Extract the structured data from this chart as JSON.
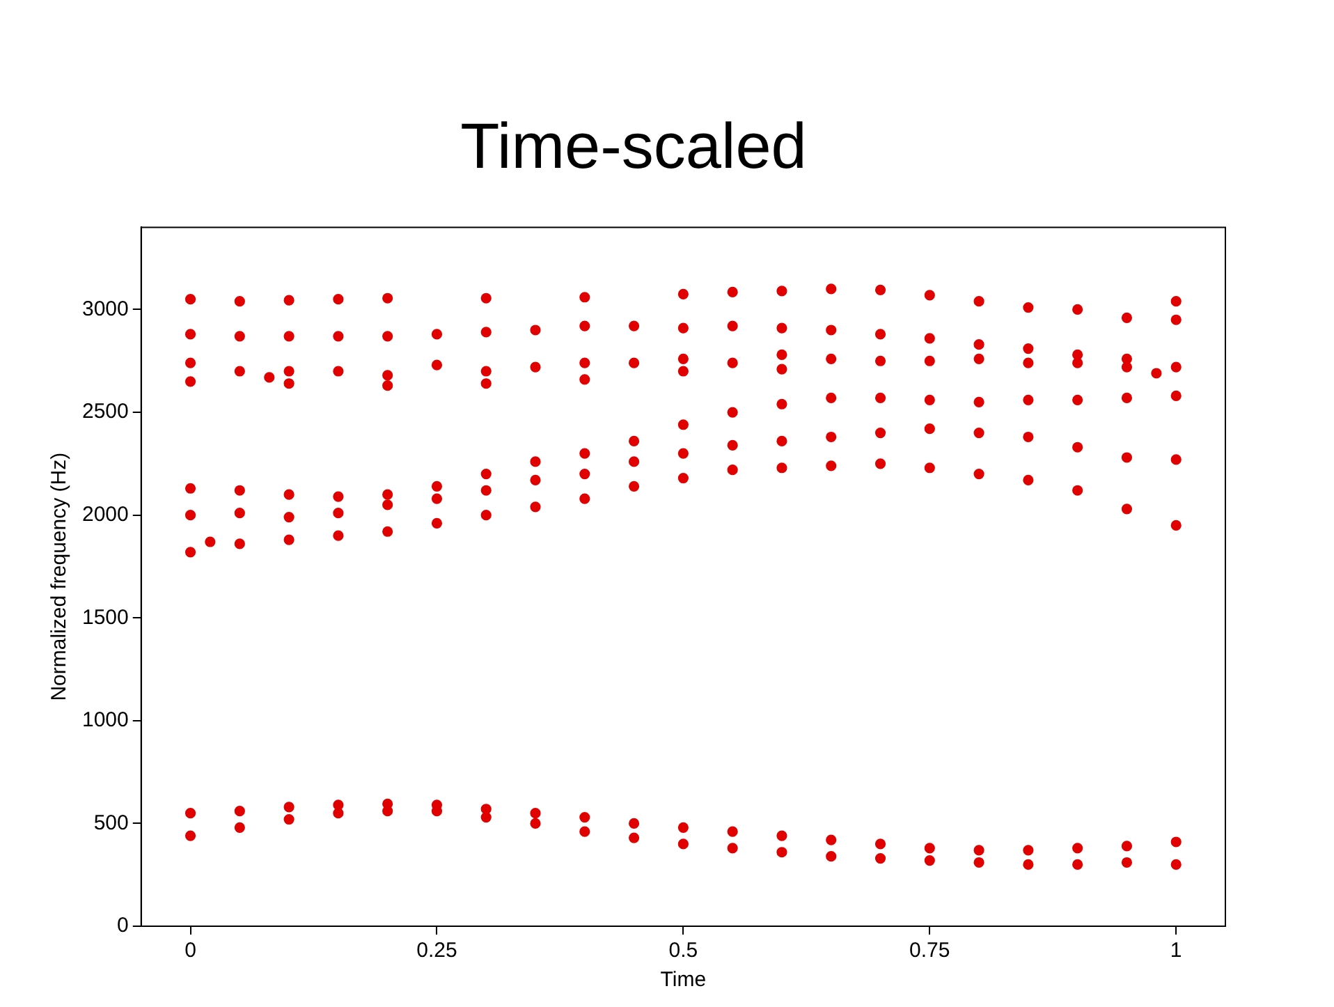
{
  "chart_data": {
    "type": "scatter",
    "title": "Time-scaled",
    "xlabel": "Time",
    "ylabel": "Normalized frequency (Hz)",
    "xlim": [
      -0.05,
      1.05
    ],
    "xticks": [
      0,
      0.25,
      0.5,
      0.75,
      1
    ],
    "ylim": [
      0,
      3400
    ],
    "yticks": [
      0,
      500,
      1000,
      1500,
      2000,
      2500,
      3000
    ],
    "grid": false,
    "legend": false,
    "marker": "circle",
    "series": [
      {
        "color": "#e00000",
        "x": [
          0,
          0.05,
          0.1,
          0.15,
          0.2,
          0.3,
          0.4,
          0.5,
          0.55,
          0.6,
          0.65,
          0.7,
          0.75,
          0.8,
          0.85,
          0.9,
          0.95,
          1
        ],
        "values": [
          3050,
          3040,
          3045,
          3050,
          3055,
          3055,
          3060,
          3075,
          3085,
          3090,
          3100,
          3095,
          3070,
          3040,
          3010,
          3000,
          2960,
          3040
        ]
      },
      {
        "color": "#e00000",
        "x": [
          0,
          0.05,
          0.1,
          0.15,
          0.2,
          0.25,
          0.3,
          0.35,
          0.4,
          0.45,
          0.5,
          0.55,
          0.6,
          0.65,
          0.7,
          0.75,
          0.8,
          0.85,
          0.9,
          0.95,
          1
        ],
        "values": [
          2880,
          2870,
          2870,
          2870,
          2870,
          2880,
          2890,
          2900,
          2920,
          2920,
          2910,
          2920,
          2910,
          2900,
          2880,
          2860,
          2830,
          2810,
          2780,
          2760,
          2950
        ]
      },
      {
        "color": "#e00000",
        "x": [
          0,
          0,
          0.05,
          0.08,
          0.1,
          0.15,
          0.2,
          0.25,
          0.3,
          0.35,
          0.4,
          0.45,
          0.5,
          0.55,
          0.6,
          0.65,
          0.7,
          0.75,
          0.8,
          0.85,
          0.9,
          0.95,
          0.98,
          1,
          0.1,
          0.2,
          0.3,
          0.4,
          0.5,
          0.6
        ],
        "values": [
          2740,
          2650,
          2700,
          2670,
          2700,
          2700,
          2680,
          2730,
          2700,
          2720,
          2740,
          2740,
          2760,
          2740,
          2780,
          2760,
          2750,
          2750,
          2760,
          2740,
          2740,
          2720,
          2690,
          2720,
          2640,
          2630,
          2640,
          2660,
          2700,
          2710
        ]
      },
      {
        "color": "#e00000",
        "x": [
          0,
          0.05,
          0.1,
          0.15,
          0.2,
          0.25,
          0.3,
          0.35,
          0.4,
          0.45,
          0.5,
          0.55,
          0.6,
          0.65,
          0.7,
          0.75,
          0.8,
          0.85,
          0.9,
          0.95,
          1
        ],
        "values": [
          2130,
          2120,
          2100,
          2090,
          2100,
          2140,
          2200,
          2260,
          2300,
          2360,
          2440,
          2500,
          2540,
          2570,
          2570,
          2560,
          2550,
          2560,
          2560,
          2570,
          2580
        ]
      },
      {
        "color": "#e00000",
        "x": [
          0,
          0.05,
          0.1,
          0.15,
          0.2,
          0.25,
          0.3,
          0.35,
          0.4,
          0.45,
          0.5,
          0.55,
          0.6,
          0.65,
          0.7,
          0.75,
          0.8,
          0.85,
          0.9,
          0.95,
          1
        ],
        "values": [
          2000,
          2010,
          1990,
          2010,
          2050,
          2080,
          2120,
          2170,
          2200,
          2260,
          2300,
          2340,
          2360,
          2380,
          2400,
          2420,
          2400,
          2380,
          2330,
          2280,
          2270
        ]
      },
      {
        "color": "#e00000",
        "x": [
          0,
          0.02,
          0.05,
          0.1,
          0.15,
          0.2,
          0.25,
          0.3,
          0.35,
          0.4,
          0.45,
          0.5,
          0.55,
          0.6,
          0.65,
          0.7,
          0.75,
          0.8,
          0.85,
          0.9,
          0.95,
          1
        ],
        "values": [
          1820,
          1870,
          1860,
          1880,
          1900,
          1920,
          1960,
          2000,
          2040,
          2080,
          2140,
          2180,
          2220,
          2230,
          2240,
          2250,
          2230,
          2200,
          2170,
          2120,
          2030,
          1950
        ]
      },
      {
        "color": "#e00000",
        "x": [
          0,
          0.05,
          0.1,
          0.15,
          0.2,
          0.25,
          0.3,
          0.35,
          0.4,
          0.45,
          0.5,
          0.55,
          0.6,
          0.65,
          0.7,
          0.75,
          0.8,
          0.85,
          0.9,
          0.95,
          1
        ],
        "values": [
          550,
          560,
          580,
          590,
          595,
          590,
          570,
          550,
          530,
          500,
          480,
          460,
          440,
          420,
          400,
          380,
          370,
          370,
          380,
          390,
          410
        ]
      },
      {
        "color": "#e00000",
        "x": [
          0,
          0.05,
          0.1,
          0.15,
          0.2,
          0.25,
          0.3,
          0.35,
          0.4,
          0.45,
          0.5,
          0.55,
          0.6,
          0.65,
          0.7,
          0.75,
          0.8,
          0.85,
          0.9,
          0.95,
          1
        ],
        "values": [
          440,
          480,
          520,
          550,
          560,
          560,
          530,
          500,
          460,
          430,
          400,
          380,
          360,
          340,
          330,
          320,
          310,
          300,
          300,
          310,
          300
        ]
      }
    ]
  }
}
